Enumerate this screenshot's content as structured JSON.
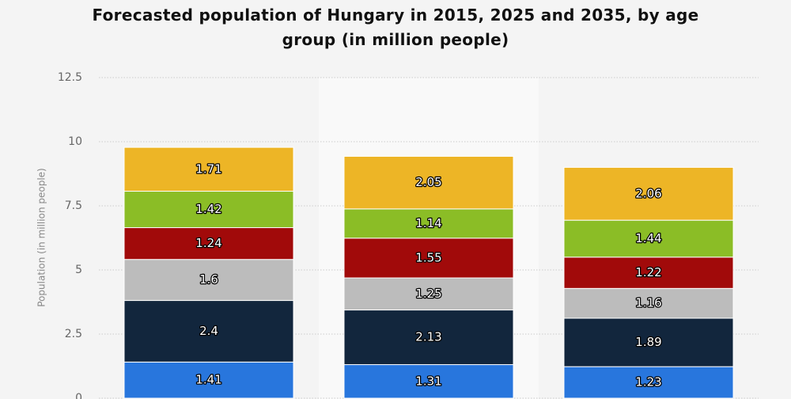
{
  "chart_data": {
    "type": "stacked-bar",
    "title": "Forecasted population of Hungary in 2015, 2025 and 2035, by age group (in million people)",
    "y_label": "Population (in million people)",
    "categories": [
      null,
      null,
      null
    ],
    "series": [
      {
        "color": "#2876dd",
        "values": [
          1.41,
          1.31,
          1.23
        ]
      },
      {
        "color": "#12263d",
        "values": [
          2.4,
          2.13,
          1.89
        ]
      },
      {
        "color": "#bcbcbc",
        "values": [
          1.6,
          1.25,
          1.16
        ]
      },
      {
        "color": "#a10a0a",
        "values": [
          1.24,
          1.55,
          1.22
        ]
      },
      {
        "color": "#8bbd26",
        "values": [
          1.42,
          1.14,
          1.44
        ]
      },
      {
        "color": "#edb526",
        "values": [
          1.71,
          2.05,
          2.06
        ]
      }
    ],
    "ylim": [
      0,
      12.5
    ],
    "yticks": [
      0,
      2.5,
      5,
      7.5,
      10,
      12.5
    ],
    "grid": true
  }
}
